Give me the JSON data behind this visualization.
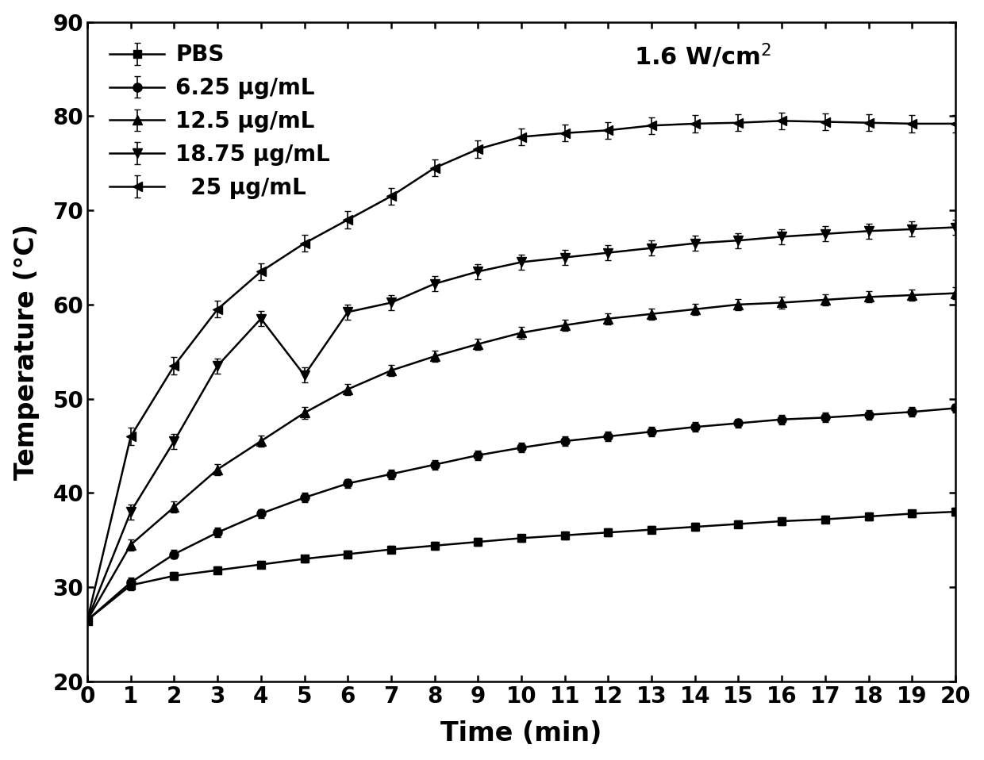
{
  "title_annotation": "1.6 W/cm$^2$",
  "xlabel": "Time (min)",
  "ylabel": "Temperature (°C)",
  "xlim": [
    0,
    20
  ],
  "ylim": [
    20,
    90
  ],
  "yticks": [
    20,
    30,
    40,
    50,
    60,
    70,
    80,
    90
  ],
  "xticks": [
    0,
    1,
    2,
    3,
    4,
    5,
    6,
    7,
    8,
    9,
    10,
    11,
    12,
    13,
    14,
    15,
    16,
    17,
    18,
    19,
    20
  ],
  "time": [
    0,
    1,
    2,
    3,
    4,
    5,
    6,
    7,
    8,
    9,
    10,
    11,
    12,
    13,
    14,
    15,
    16,
    17,
    18,
    19,
    20
  ],
  "series": [
    {
      "label": "PBS",
      "marker": "s",
      "values": [
        26.5,
        30.2,
        31.2,
        31.8,
        32.4,
        33.0,
        33.5,
        34.0,
        34.4,
        34.8,
        35.2,
        35.5,
        35.8,
        36.1,
        36.4,
        36.7,
        37.0,
        37.2,
        37.5,
        37.8,
        38.0
      ],
      "errors": [
        0.0,
        0.5,
        0.4,
        0.4,
        0.4,
        0.4,
        0.4,
        0.4,
        0.4,
        0.4,
        0.4,
        0.4,
        0.4,
        0.4,
        0.4,
        0.4,
        0.4,
        0.4,
        0.4,
        0.4,
        0.4
      ]
    },
    {
      "label": "6.25 μg/mL",
      "marker": "o",
      "values": [
        26.5,
        30.5,
        33.5,
        35.8,
        37.8,
        39.5,
        41.0,
        42.0,
        43.0,
        44.0,
        44.8,
        45.5,
        46.0,
        46.5,
        47.0,
        47.4,
        47.8,
        48.0,
        48.3,
        48.6,
        49.0
      ],
      "errors": [
        0.0,
        0.5,
        0.5,
        0.5,
        0.5,
        0.5,
        0.5,
        0.5,
        0.5,
        0.5,
        0.5,
        0.5,
        0.5,
        0.5,
        0.5,
        0.5,
        0.5,
        0.5,
        0.5,
        0.5,
        0.5
      ]
    },
    {
      "label": "12.5 μg/mL",
      "marker": "^",
      "values": [
        26.5,
        34.5,
        38.5,
        42.5,
        45.5,
        48.5,
        51.0,
        53.0,
        54.5,
        55.8,
        57.0,
        57.8,
        58.5,
        59.0,
        59.5,
        60.0,
        60.2,
        60.5,
        60.8,
        61.0,
        61.2
      ],
      "errors": [
        0.0,
        0.6,
        0.6,
        0.6,
        0.6,
        0.6,
        0.6,
        0.6,
        0.6,
        0.6,
        0.6,
        0.6,
        0.6,
        0.6,
        0.6,
        0.6,
        0.6,
        0.6,
        0.6,
        0.6,
        0.6
      ]
    },
    {
      "label": "18.75 μg/mL",
      "marker": "v",
      "values": [
        26.5,
        38.0,
        45.5,
        53.5,
        58.5,
        52.5,
        59.2,
        60.2,
        62.2,
        63.5,
        64.5,
        65.0,
        65.5,
        66.0,
        66.5,
        66.8,
        67.2,
        67.5,
        67.8,
        68.0,
        68.2
      ],
      "errors": [
        0.0,
        0.8,
        0.8,
        0.8,
        0.8,
        0.8,
        0.8,
        0.8,
        0.8,
        0.8,
        0.8,
        0.8,
        0.8,
        0.8,
        0.8,
        0.8,
        0.8,
        0.8,
        0.8,
        0.8,
        0.8
      ]
    },
    {
      "label": "  25 μg/mL",
      "marker": "<",
      "values": [
        26.5,
        46.0,
        53.5,
        59.5,
        63.5,
        66.5,
        69.0,
        71.5,
        74.5,
        76.5,
        77.8,
        78.2,
        78.5,
        79.0,
        79.2,
        79.3,
        79.5,
        79.4,
        79.3,
        79.2,
        79.2
      ],
      "errors": [
        0.0,
        0.9,
        0.9,
        0.9,
        0.9,
        0.9,
        0.9,
        0.9,
        0.9,
        0.9,
        0.9,
        0.9,
        0.9,
        0.9,
        0.9,
        0.9,
        0.9,
        0.9,
        0.9,
        0.9,
        0.9
      ]
    }
  ],
  "line_color": "#000000",
  "background_color": "#ffffff",
  "fontsize_labels": 24,
  "fontsize_ticks": 20,
  "fontsize_legend": 20,
  "fontsize_annotation": 22
}
